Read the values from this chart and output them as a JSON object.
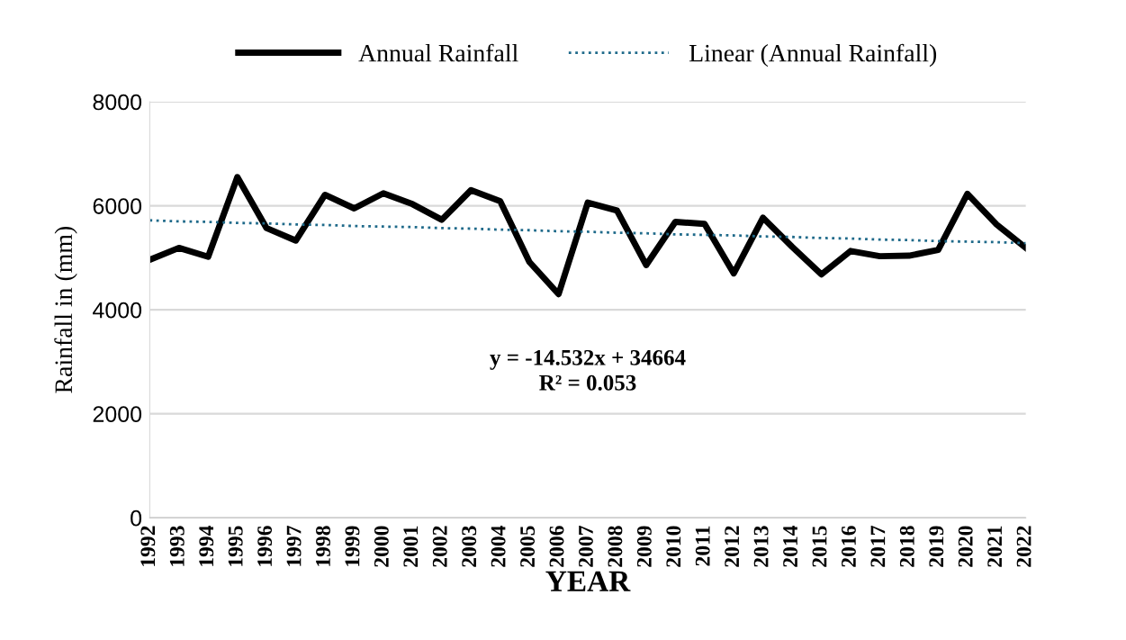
{
  "chart_data": {
    "type": "line",
    "xlabel": "YEAR",
    "ylabel": "Rainfall in (mm)",
    "categories": [
      "1992",
      "1993",
      "1994",
      "1995",
      "1996",
      "1997",
      "1998",
      "1999",
      "2000",
      "2001",
      "2002",
      "2003",
      "2004",
      "2005",
      "2006",
      "2007",
      "2008",
      "2009",
      "2010",
      "2011",
      "2012",
      "2013",
      "2014",
      "2015",
      "2016",
      "2017",
      "2018",
      "2019",
      "2020",
      "2021",
      "2022"
    ],
    "series": [
      {
        "name": "Annual Rainfall",
        "color": "#000000",
        "line_style": "solid",
        "values": [
          4960,
          5190,
          5020,
          6550,
          5570,
          5330,
          6210,
          5950,
          6240,
          6030,
          5730,
          6300,
          6090,
          4920,
          4300,
          6060,
          5910,
          4860,
          5690,
          5650,
          4700,
          5770,
          5210,
          4680,
          5130,
          5030,
          5040,
          5150,
          6230,
          5640,
          5190
        ]
      },
      {
        "name": "Linear (Annual Rainfall)",
        "color": "#1f6a8a",
        "line_style": "dotted",
        "values": [
          5720,
          5700,
          5690,
          5670,
          5660,
          5640,
          5630,
          5610,
          5600,
          5590,
          5570,
          5560,
          5540,
          5530,
          5510,
          5500,
          5480,
          5470,
          5450,
          5440,
          5430,
          5410,
          5400,
          5380,
          5370,
          5350,
          5340,
          5320,
          5310,
          5300,
          5280
        ]
      }
    ],
    "ylim": [
      0,
      8000
    ],
    "yticks": [
      0,
      2000,
      4000,
      6000,
      8000
    ],
    "grid": "y",
    "legend": "top",
    "marker": "none",
    "annotations": [
      "y = -14.532x + 34664",
      "R² = 0.053"
    ]
  }
}
